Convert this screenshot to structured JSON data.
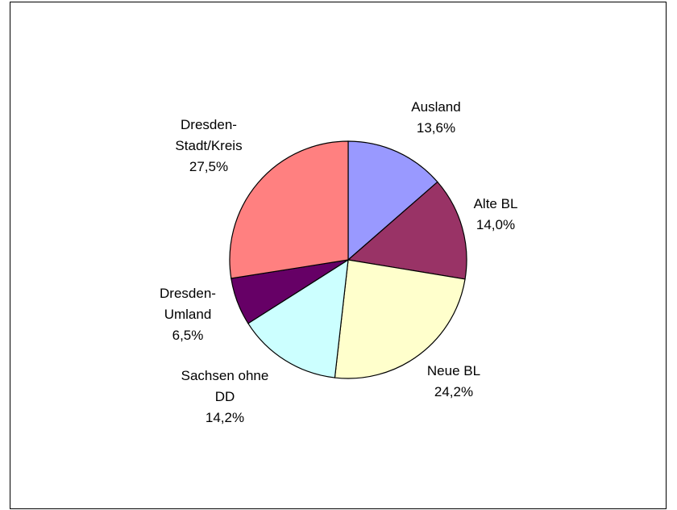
{
  "chart_data": {
    "type": "pie",
    "title": "",
    "start_angle_deg": 0,
    "direction": "clockwise",
    "slices": [
      {
        "lines": [
          "Ausland"
        ],
        "value_label": "13,6%",
        "value": 13.6,
        "color": "#9999ff"
      },
      {
        "lines": [
          "Alte BL"
        ],
        "value_label": "14,0%",
        "value": 14.0,
        "color": "#993366"
      },
      {
        "lines": [
          "Neue BL"
        ],
        "value_label": "24,2%",
        "value": 24.2,
        "color": "#ffffcc"
      },
      {
        "lines": [
          "Sachsen ohne",
          "DD"
        ],
        "value_label": "14,2%",
        "value": 14.2,
        "color": "#ccffff"
      },
      {
        "lines": [
          "Dresden-",
          "Umland"
        ],
        "value_label": "6,5%",
        "value": 6.5,
        "color": "#660066"
      },
      {
        "lines": [
          "Dresden-",
          "Stadt/Kreis"
        ],
        "value_label": "27,5%",
        "value": 27.5,
        "color": "#ff8080"
      }
    ]
  }
}
